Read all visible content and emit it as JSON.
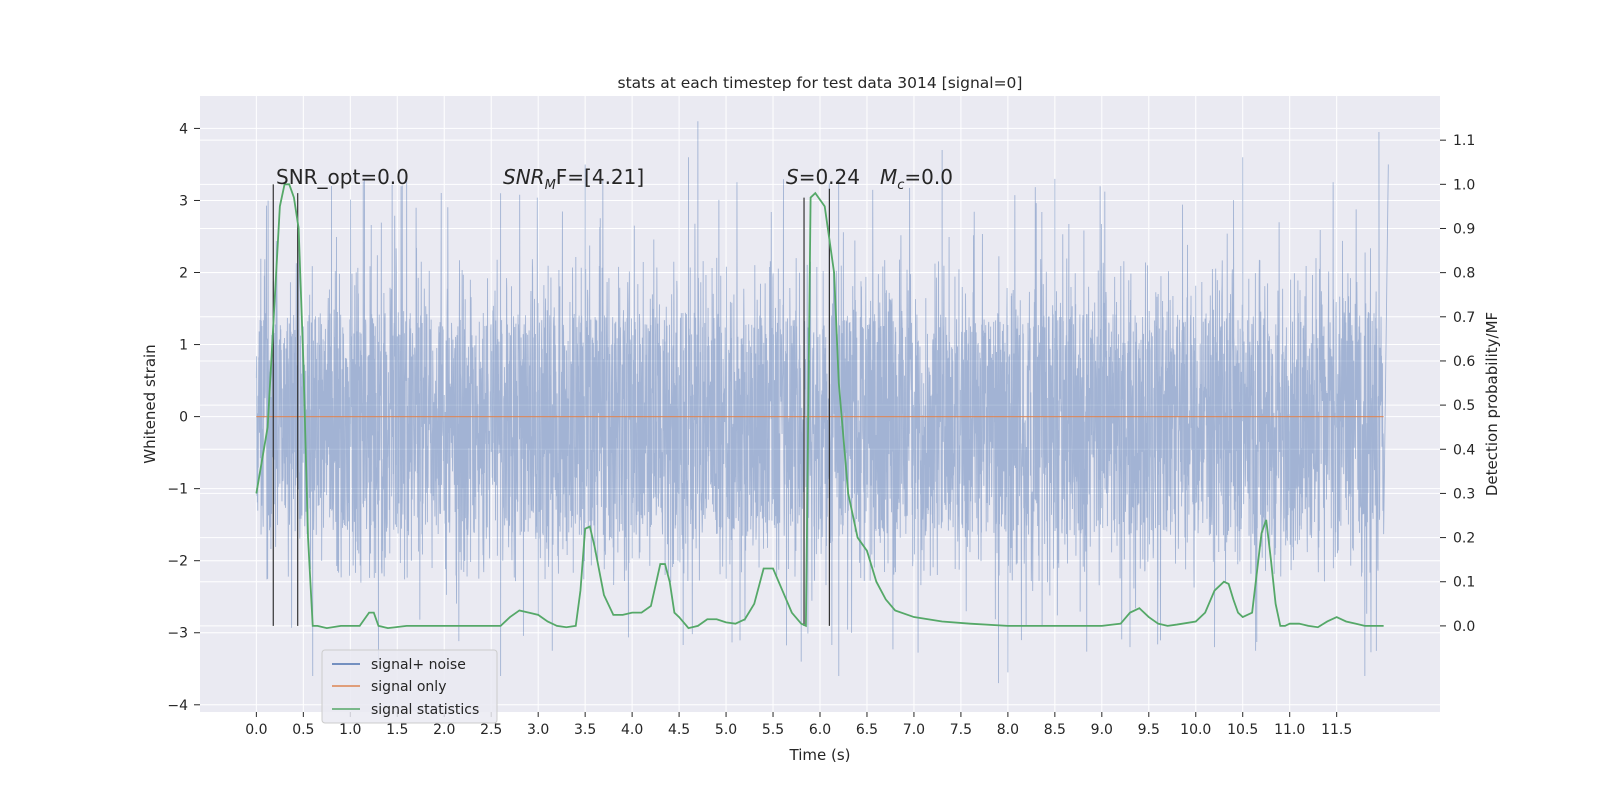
{
  "chart_data": {
    "type": "line",
    "title": "stats at each timestep for test data 3014 [signal=0]",
    "xlabel": "Time (s)",
    "ylabel": "Whitened strain",
    "y2label": "Detection probability/MF",
    "xlim": [
      -0.6,
      12.6
    ],
    "ylim": [
      -4.1,
      4.45
    ],
    "y2lim": [
      -0.195,
      1.2
    ],
    "x_ticks": [
      0.0,
      0.5,
      1.0,
      1.5,
      2.0,
      2.5,
      3.0,
      3.5,
      4.0,
      4.5,
      5.0,
      5.5,
      6.0,
      6.5,
      7.0,
      7.5,
      8.0,
      8.5,
      9.0,
      9.5,
      10.0,
      10.5,
      11.0,
      11.5
    ],
    "x_tick_labels": [
      "0.0",
      "0.5",
      "1.0",
      "1.5",
      "2.0",
      "2.5",
      "3.0",
      "3.5",
      "4.0",
      "4.5",
      "5.0",
      "5.5",
      "6.0",
      "6.5",
      "7.0",
      "7.5",
      "8.0",
      "8.5",
      "9.0",
      "9.5",
      "10.0",
      "10.5",
      "11.0",
      "11.5"
    ],
    "y_ticks": [
      -4,
      -3,
      -2,
      -1,
      0,
      1,
      2,
      3,
      4
    ],
    "y_tick_labels": [
      "−4",
      "−3",
      "−2",
      "−1",
      "0",
      "1",
      "2",
      "3",
      "4"
    ],
    "y2_ticks": [
      0.0,
      0.1,
      0.2,
      0.3,
      0.4,
      0.5,
      0.6,
      0.7,
      0.8,
      0.9,
      1.0,
      1.1
    ],
    "y2_tick_labels": [
      "0.0",
      "0.1",
      "0.2",
      "0.3",
      "0.4",
      "0.5",
      "0.6",
      "0.7",
      "0.8",
      "0.9",
      "1.0",
      "1.1"
    ],
    "grid": true,
    "legend_position": "lower-left",
    "annotations": {
      "snr_opt": "SNR_opt=0.0",
      "snr_mf_symbol": "SNR",
      "snr_mf_subscript": "M",
      "snr_mf_rest": "F=[4.21]",
      "s_symbol": "S",
      "s_value": "=0.24",
      "mc_symbol": "M",
      "mc_subscript": "c",
      "mc_value": "=0.0"
    },
    "series": [
      {
        "name": "signal+ noise",
        "color": "#4c72b0",
        "style": "dense noise band",
        "x_range": [
          0.0,
          12.0
        ],
        "typical_band": [
          -1.65,
          1.45
        ],
        "outer_band": [
          -2.3,
          2.2
        ],
        "peaks": [
          {
            "x": 0.8,
            "y": 3.2
          },
          {
            "x": 1.6,
            "y": 3.3
          },
          {
            "x": 2.6,
            "y": 3.1
          },
          {
            "x": 4.7,
            "y": 4.1
          },
          {
            "x": 4.6,
            "y": 3.6
          },
          {
            "x": 7.3,
            "y": 3.7
          },
          {
            "x": 10.5,
            "y": 3.6
          },
          {
            "x": 11.95,
            "y": 3.95
          },
          {
            "x": 12.05,
            "y": 3.5
          },
          {
            "x": 3.5,
            "y": 3.5
          },
          {
            "x": 8.5,
            "y": 3.3
          }
        ],
        "troughs": [
          {
            "x": 0.6,
            "y": -3.6
          },
          {
            "x": 2.6,
            "y": -3.6
          },
          {
            "x": 5.8,
            "y": -3.4
          },
          {
            "x": 6.2,
            "y": -3.6
          },
          {
            "x": 7.9,
            "y": -3.7
          },
          {
            "x": 8.0,
            "y": -3.55
          },
          {
            "x": 10.2,
            "y": -3.2
          },
          {
            "x": 11.8,
            "y": -3.6
          },
          {
            "x": 1.3,
            "y": -3.4
          },
          {
            "x": 3.15,
            "y": -3.25
          },
          {
            "x": 9.3,
            "y": -3.2
          }
        ]
      },
      {
        "name": "signal only",
        "color": "#dd8452",
        "x": [
          0.0,
          12.0
        ],
        "y": [
          0.0,
          0.0
        ]
      },
      {
        "name": "signal statistics",
        "color": "#55a868",
        "axis": "right",
        "x": [
          0.0,
          0.12,
          0.25,
          0.3,
          0.35,
          0.4,
          0.45,
          0.5,
          0.55,
          0.6,
          0.65,
          0.75,
          0.9,
          1.1,
          1.2,
          1.25,
          1.3,
          1.4,
          1.6,
          2.0,
          2.4,
          2.6,
          2.7,
          2.8,
          2.9,
          3.0,
          3.1,
          3.2,
          3.3,
          3.4,
          3.45,
          3.5,
          3.55,
          3.6,
          3.7,
          3.8,
          3.9,
          4.0,
          4.1,
          4.2,
          4.3,
          4.35,
          4.4,
          4.45,
          4.5,
          4.6,
          4.7,
          4.8,
          4.9,
          5.0,
          5.1,
          5.2,
          5.3,
          5.4,
          5.5,
          5.6,
          5.7,
          5.8,
          5.85,
          5.9,
          5.95,
          6.05,
          6.15,
          6.2,
          6.3,
          6.4,
          6.5,
          6.6,
          6.7,
          6.8,
          7.0,
          7.3,
          7.6,
          8.0,
          8.5,
          9.0,
          9.2,
          9.3,
          9.4,
          9.5,
          9.6,
          9.7,
          9.8,
          10.0,
          10.1,
          10.2,
          10.3,
          10.35,
          10.4,
          10.45,
          10.5,
          10.6,
          10.7,
          10.75,
          10.8,
          10.85,
          10.9,
          10.95,
          11.0,
          11.1,
          11.2,
          11.3,
          11.4,
          11.5,
          11.6,
          11.7,
          11.8,
          11.9,
          12.0
        ],
        "y": [
          0.3,
          0.45,
          0.95,
          1.0,
          1.0,
          0.97,
          0.9,
          0.6,
          0.2,
          0.0,
          0.0,
          -0.005,
          0.0,
          0.0,
          0.03,
          0.03,
          0.0,
          -0.005,
          0.0,
          0.0,
          0.0,
          0.0,
          0.02,
          0.035,
          0.03,
          0.025,
          0.01,
          0.0,
          -0.003,
          0.0,
          0.08,
          0.22,
          0.225,
          0.18,
          0.07,
          0.025,
          0.025,
          0.03,
          0.03,
          0.045,
          0.14,
          0.14,
          0.1,
          0.03,
          0.02,
          -0.005,
          0.0,
          0.015,
          0.015,
          0.008,
          0.005,
          0.015,
          0.05,
          0.13,
          0.13,
          0.08,
          0.03,
          0.005,
          0.0,
          0.97,
          0.98,
          0.95,
          0.8,
          0.55,
          0.3,
          0.2,
          0.17,
          0.1,
          0.06,
          0.035,
          0.02,
          0.01,
          0.005,
          0.0,
          0.0,
          0.0,
          0.005,
          0.03,
          0.04,
          0.02,
          0.005,
          0.0,
          0.003,
          0.01,
          0.03,
          0.08,
          0.1,
          0.095,
          0.06,
          0.03,
          0.02,
          0.03,
          0.21,
          0.24,
          0.15,
          0.05,
          0.0,
          0.0,
          0.005,
          0.005,
          0.0,
          -0.003,
          0.01,
          0.02,
          0.01,
          0.005,
          0.0,
          0.0,
          0.0
        ]
      }
    ],
    "vertical_markers": [
      {
        "x": 0.18,
        "y2_from": 0.0,
        "y2_to": 1.0
      },
      {
        "x": 0.44,
        "y2_from": 0.0,
        "y2_to": 0.98
      },
      {
        "x": 5.83,
        "y2_from": 0.0,
        "y2_to": 0.97
      },
      {
        "x": 6.1,
        "y2_from": 0.0,
        "y2_to": 0.99
      }
    ]
  }
}
